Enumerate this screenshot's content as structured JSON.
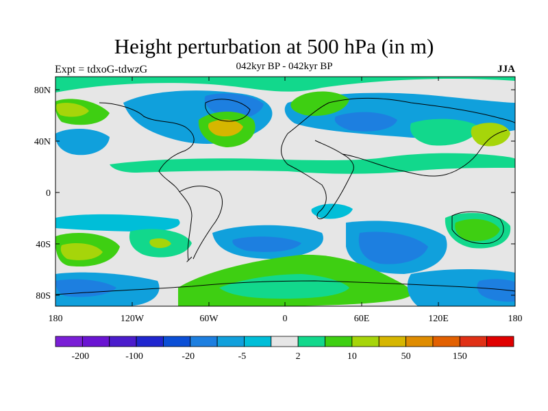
{
  "title": "Height perturbation at 500 hPa (in m)",
  "subtitle": "042kyr BP - 042kyr BP",
  "left_label": "Expt = tdxoG-tdwzG",
  "right_label": "JJA",
  "axes": {
    "y_ticks": [
      "80N",
      "40N",
      "0",
      "40S",
      "80S"
    ],
    "x_ticks": [
      "180",
      "120W",
      "60W",
      "0",
      "60E",
      "120E",
      "180"
    ]
  },
  "colorbar": {
    "colors": [
      "#7a1fd6",
      "#6a14d2",
      "#4b1ccc",
      "#2026cf",
      "#0b4fd6",
      "#1d7fe0",
      "#10a0dc",
      "#00bed8",
      "#e6e6e6",
      "#12d88c",
      "#3ecf12",
      "#a6d50a",
      "#d6b600",
      "#df8c00",
      "#e26000",
      "#e03015",
      "#e00000"
    ],
    "labels": [
      "-200",
      "-100",
      "-20",
      "-5",
      "2",
      "10",
      "50",
      "150"
    ]
  },
  "palette": {
    "neutral": "#e6e6e6",
    "blue_light": "#10a0dc",
    "blue_mid": "#1d7fe0",
    "cyan": "#00bed8",
    "green_light": "#12d88c",
    "green": "#3ecf12",
    "yellow_green": "#a6d50a",
    "yellow": "#d6b600",
    "orange": "#df8c00"
  }
}
